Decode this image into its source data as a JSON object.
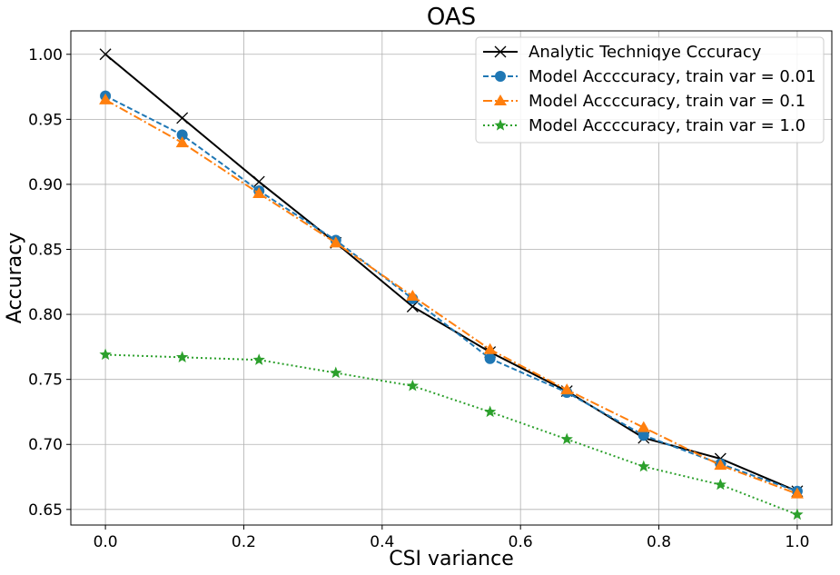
{
  "chart_data": {
    "type": "line",
    "title": "OAS",
    "xlabel": "CSI variance",
    "ylabel": "Accuracy",
    "xlim": [
      -0.05,
      1.05
    ],
    "ylim": [
      0.638,
      1.018
    ],
    "xticks": [
      0.0,
      0.2,
      0.4,
      0.6,
      0.8,
      1.0
    ],
    "xtick_labels": [
      "0.0",
      "0.2",
      "0.4",
      "0.6",
      "0.8",
      "1.0"
    ],
    "yticks": [
      0.65,
      0.7,
      0.75,
      0.8,
      0.85,
      0.9,
      0.95,
      1.0
    ],
    "ytick_labels": [
      "0.65",
      "0.70",
      "0.75",
      "0.80",
      "0.85",
      "0.90",
      "0.95",
      "1.00"
    ],
    "grid": true,
    "legend_position": "top-right",
    "x": [
      0.0,
      0.111,
      0.222,
      0.333,
      0.444,
      0.556,
      0.667,
      0.778,
      0.889,
      1.0
    ],
    "series": [
      {
        "name": "Analytic Techniqye Cccuracy",
        "color": "#000000",
        "marker": "x",
        "linestyle": "solid",
        "values": [
          1.0,
          0.951,
          0.902,
          0.855,
          0.806,
          0.771,
          0.741,
          0.705,
          0.689,
          0.664
        ]
      },
      {
        "name": "Model Accccuracy, train var = 0.01",
        "color": "#1f77b4",
        "marker": "circle",
        "linestyle": "dashed",
        "values": [
          0.968,
          0.938,
          0.895,
          0.857,
          0.812,
          0.766,
          0.74,
          0.707,
          0.685,
          0.664
        ]
      },
      {
        "name": "Model Accccuracy, train var = 0.1",
        "color": "#ff7f0e",
        "marker": "triangle",
        "linestyle": "dashdot",
        "values": [
          0.965,
          0.932,
          0.893,
          0.855,
          0.814,
          0.773,
          0.742,
          0.713,
          0.684,
          0.662
        ]
      },
      {
        "name": "Model Accccuracy, train var = 1.0",
        "color": "#2ca02c",
        "marker": "star",
        "linestyle": "dotted",
        "values": [
          0.769,
          0.767,
          0.765,
          0.755,
          0.745,
          0.725,
          0.704,
          0.683,
          0.669,
          0.646
        ]
      }
    ]
  }
}
